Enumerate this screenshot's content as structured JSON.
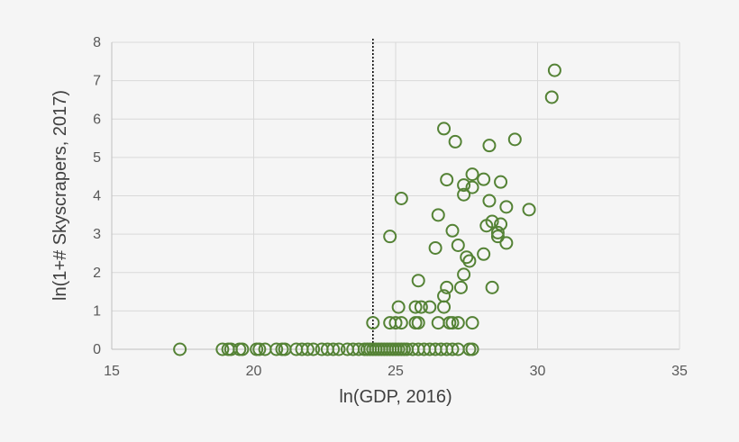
{
  "chart_data": {
    "type": "scatter",
    "title": "",
    "xlabel": "ln(GDP, 2016)",
    "ylabel": "ln(1+# Skyscrapers, 2017)",
    "xlim": [
      15,
      35
    ],
    "ylim": [
      0,
      8
    ],
    "xticks": [
      "15",
      "20",
      "25",
      "30",
      "35"
    ],
    "yticks": [
      "0",
      "1",
      "2",
      "3",
      "4",
      "5",
      "6",
      "7",
      "8"
    ],
    "grid": true,
    "legend": "none",
    "marker_color": "#548235",
    "marker": "hollow-circle",
    "reference_line": {
      "x": 24.2,
      "style": "dotted",
      "color": "#000000"
    },
    "series": [
      {
        "points": [
          [
            17.4,
            0
          ],
          [
            18.9,
            0
          ],
          [
            19.1,
            0
          ],
          [
            19.2,
            0
          ],
          [
            19.5,
            0
          ],
          [
            19.6,
            0
          ],
          [
            20.1,
            0
          ],
          [
            20.2,
            0
          ],
          [
            20.4,
            0
          ],
          [
            20.8,
            0
          ],
          [
            21.0,
            0
          ],
          [
            21.1,
            0
          ],
          [
            21.5,
            0
          ],
          [
            21.7,
            0
          ],
          [
            21.9,
            0
          ],
          [
            22.1,
            0
          ],
          [
            22.4,
            0
          ],
          [
            22.6,
            0
          ],
          [
            22.8,
            0
          ],
          [
            23.0,
            0
          ],
          [
            23.3,
            0
          ],
          [
            23.5,
            0
          ],
          [
            23.7,
            0
          ],
          [
            23.9,
            0
          ],
          [
            24.0,
            0
          ],
          [
            24.1,
            0
          ],
          [
            24.2,
            0
          ],
          [
            24.3,
            0
          ],
          [
            24.4,
            0
          ],
          [
            24.5,
            0
          ],
          [
            24.6,
            0
          ],
          [
            24.7,
            0
          ],
          [
            24.8,
            0
          ],
          [
            24.9,
            0
          ],
          [
            25.0,
            0
          ],
          [
            25.1,
            0
          ],
          [
            25.2,
            0
          ],
          [
            25.3,
            0
          ],
          [
            25.4,
            0
          ],
          [
            25.6,
            0
          ],
          [
            25.8,
            0
          ],
          [
            26.0,
            0
          ],
          [
            26.2,
            0
          ],
          [
            26.4,
            0
          ],
          [
            26.6,
            0
          ],
          [
            26.8,
            0
          ],
          [
            27.0,
            0
          ],
          [
            27.2,
            0
          ],
          [
            27.6,
            0
          ],
          [
            27.7,
            0
          ],
          [
            24.2,
            0.69
          ],
          [
            24.8,
            0.69
          ],
          [
            25.0,
            0.69
          ],
          [
            25.2,
            0.69
          ],
          [
            25.7,
            0.69
          ],
          [
            25.8,
            0.69
          ],
          [
            26.5,
            0.69
          ],
          [
            26.9,
            0.69
          ],
          [
            27.0,
            0.69
          ],
          [
            27.2,
            0.69
          ],
          [
            27.7,
            0.69
          ],
          [
            25.1,
            1.1
          ],
          [
            25.7,
            1.1
          ],
          [
            25.9,
            1.1
          ],
          [
            26.2,
            1.1
          ],
          [
            26.7,
            1.1
          ],
          [
            26.7,
            1.39
          ],
          [
            26.8,
            1.61
          ],
          [
            27.3,
            1.61
          ],
          [
            28.4,
            1.61
          ],
          [
            25.8,
            1.79
          ],
          [
            27.4,
            1.95
          ],
          [
            27.6,
            2.3
          ],
          [
            27.5,
            2.4
          ],
          [
            28.1,
            2.48
          ],
          [
            26.4,
            2.64
          ],
          [
            27.2,
            2.71
          ],
          [
            28.9,
            2.77
          ],
          [
            24.8,
            2.94
          ],
          [
            28.6,
            2.94
          ],
          [
            28.6,
            3.04
          ],
          [
            27.0,
            3.09
          ],
          [
            28.2,
            3.22
          ],
          [
            28.7,
            3.26
          ],
          [
            28.4,
            3.33
          ],
          [
            26.5,
            3.5
          ],
          [
            29.7,
            3.64
          ],
          [
            28.9,
            3.71
          ],
          [
            28.3,
            3.87
          ],
          [
            25.2,
            3.93
          ],
          [
            27.4,
            4.03
          ],
          [
            27.7,
            4.22
          ],
          [
            27.4,
            4.28
          ],
          [
            28.7,
            4.36
          ],
          [
            26.8,
            4.42
          ],
          [
            28.1,
            4.43
          ],
          [
            27.7,
            4.56
          ],
          [
            28.3,
            5.31
          ],
          [
            27.1,
            5.41
          ],
          [
            29.2,
            5.47
          ],
          [
            26.7,
            5.75
          ],
          [
            30.5,
            6.57
          ],
          [
            30.6,
            7.27
          ]
        ]
      }
    ]
  }
}
